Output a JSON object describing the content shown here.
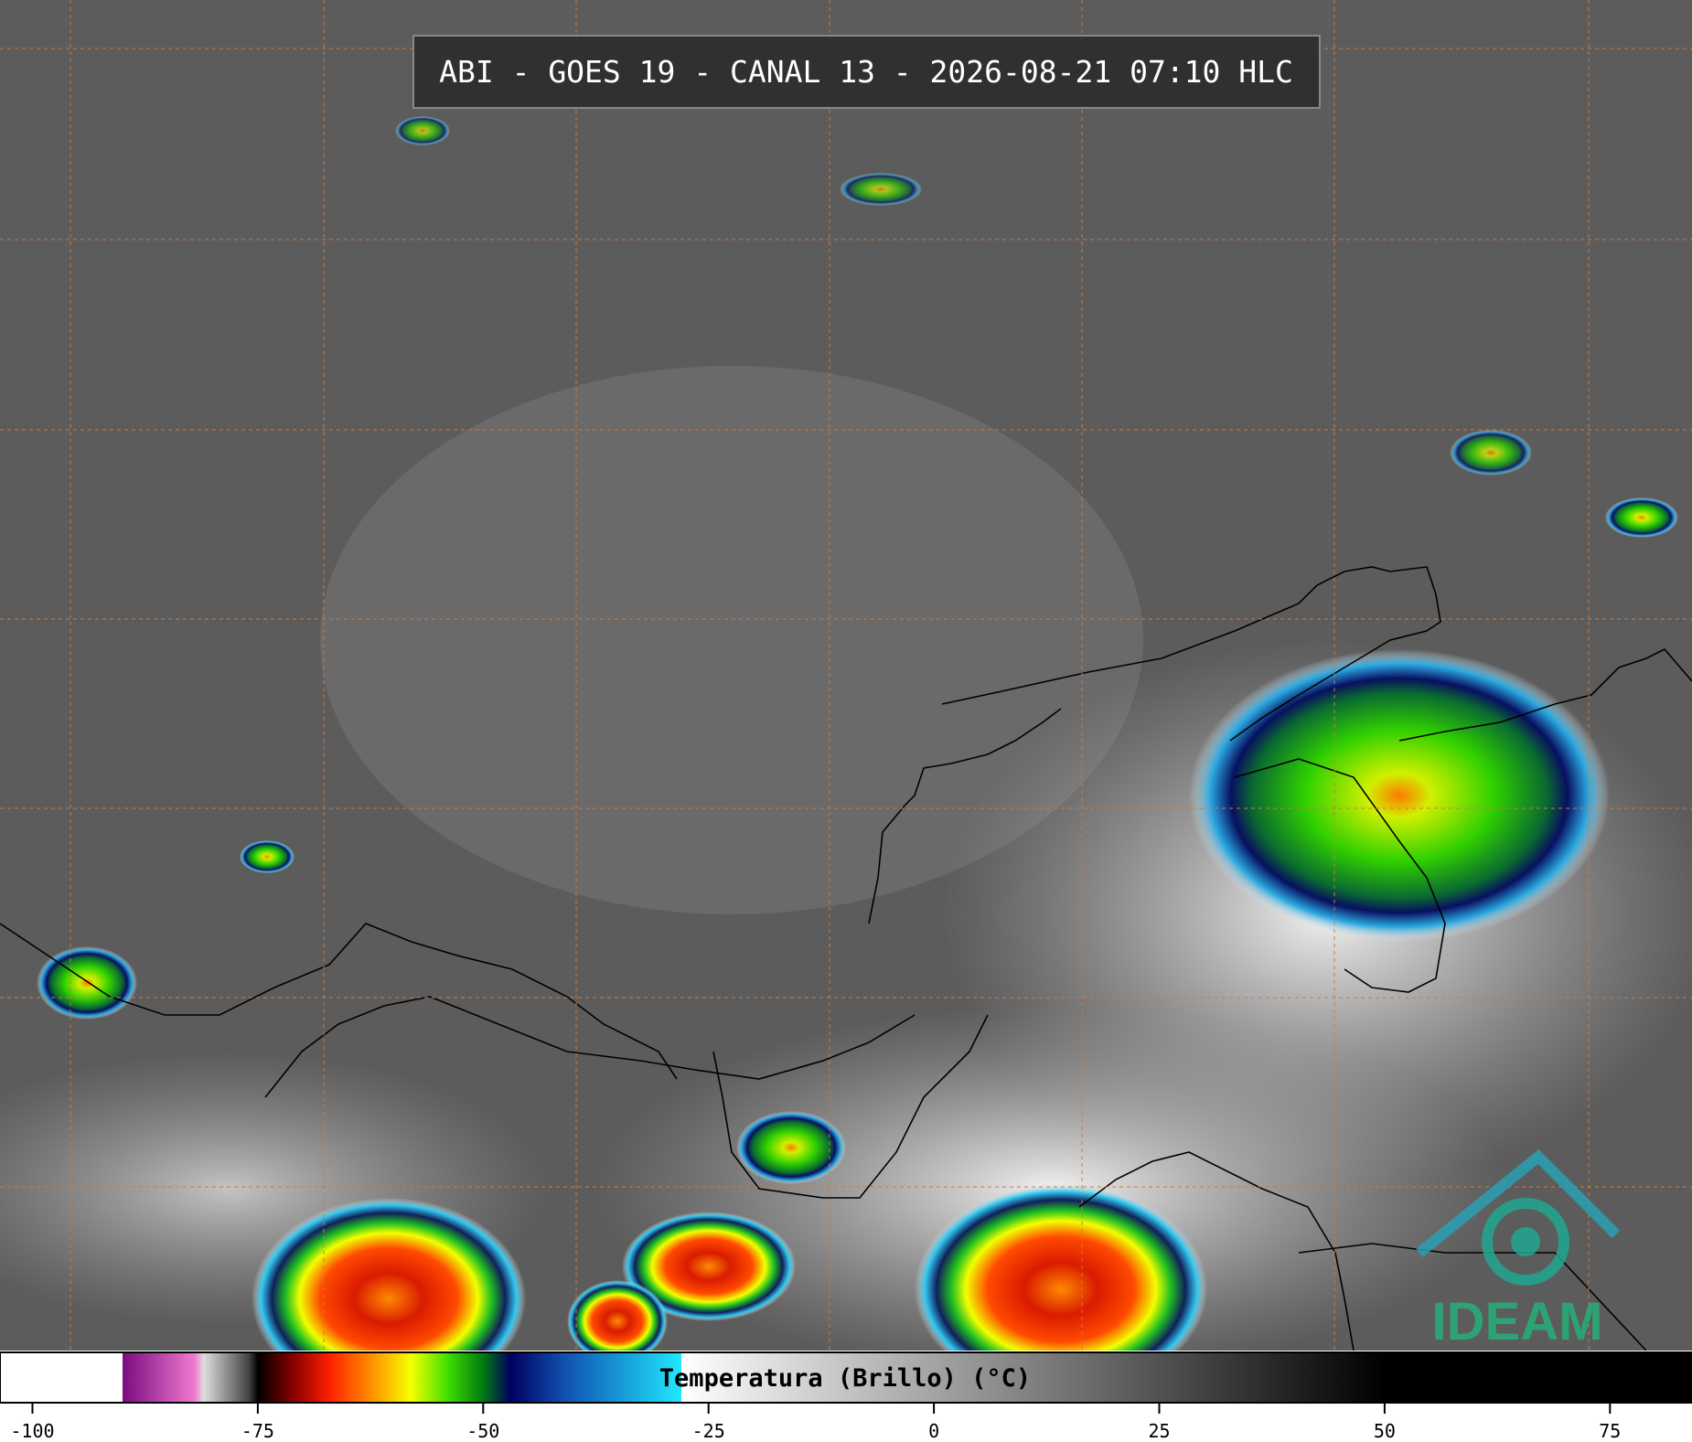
{
  "header": {
    "title": "ABI - GOES 19 - CANAL 13 - 2026-08-21 07:10 HLC"
  },
  "colorbar": {
    "label": "Temperatura (Brillo) (°C)",
    "lim": [
      -103.6,
      84.1
    ],
    "ticks": [
      -100,
      -75,
      -50,
      -25,
      0,
      25,
      50,
      75
    ],
    "stops": [
      {
        "value": -103.6,
        "color": "#ffffff"
      },
      {
        "value": -90,
        "color": "#ffffff"
      },
      {
        "value": -90,
        "color": "#7a0d80"
      },
      {
        "value": -82,
        "color": "#f07ad0"
      },
      {
        "value": -81,
        "color": "#dddddd"
      },
      {
        "value": -76,
        "color": "#444444"
      },
      {
        "value": -75,
        "color": "#000000"
      },
      {
        "value": -71,
        "color": "#8a0000"
      },
      {
        "value": -67,
        "color": "#ff2000"
      },
      {
        "value": -62,
        "color": "#ff9900"
      },
      {
        "value": -58,
        "color": "#f5ff00"
      },
      {
        "value": -54,
        "color": "#40e000"
      },
      {
        "value": -50,
        "color": "#007a10"
      },
      {
        "value": -47,
        "color": "#000060"
      },
      {
        "value": -41,
        "color": "#1050b0"
      },
      {
        "value": -28,
        "color": "#20e8ff"
      },
      {
        "value": -28,
        "color": "#ffffff"
      },
      {
        "value": 50,
        "color": "#000000"
      },
      {
        "value": 84.1,
        "color": "#000000"
      }
    ]
  },
  "logo": {
    "text": "IDEAM"
  }
}
